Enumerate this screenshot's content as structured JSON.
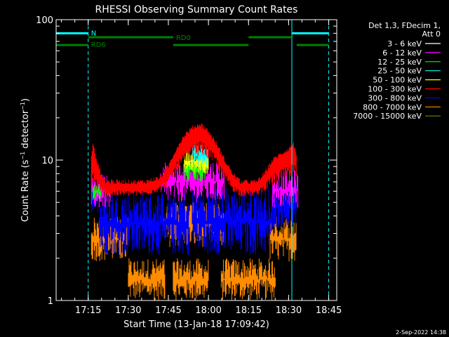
{
  "chart_data": {
    "type": "line",
    "title": "RHESSI Observing Summary Count Rates",
    "xlabel": "Start Time (13-Jan-18 17:09:42)",
    "ylabel": "Count Rate (s",
    "ylabel_exp1": "−1",
    "ylabel_mid": " detector",
    "ylabel_exp2": "−1",
    "ylabel_end": ")",
    "y_scale": "log",
    "ylim": [
      1,
      100
    ],
    "xlim_minutes": [
      17.05,
      18.8
    ],
    "x_tick_labels": [
      "17:15",
      "17:30",
      "17:45",
      "18:00",
      "18:15",
      "18:30",
      "18:45"
    ],
    "x_tick_values": [
      17.25,
      17.5,
      17.75,
      18.0,
      18.25,
      18.5,
      18.75
    ],
    "y_tick_labels": [
      "1",
      "10",
      "100"
    ],
    "y_tick_values": [
      1,
      10,
      100
    ],
    "legend_header": [
      "Det 1,3, FDecim 1,",
      "Att 0"
    ],
    "legend_placement": "right",
    "series": [
      {
        "name": "3 - 6 keV",
        "color": "#ffffff"
      },
      {
        "name": "6 - 12 keV",
        "color": "#ff00ff"
      },
      {
        "name": "12 - 25 keV",
        "color": "#00ff00"
      },
      {
        "name": "25 - 50 keV",
        "color": "#00ffff"
      },
      {
        "name": "50 - 100 keV",
        "color": "#ffff00"
      },
      {
        "name": "100 - 300 keV",
        "color": "#ff0000"
      },
      {
        "name": "300 - 800 keV",
        "color": "#0000ff"
      },
      {
        "name": "800 - 7000 keV",
        "color": "#ff8c00"
      },
      {
        "name": "7000 - 15000 keV",
        "color": "#808000"
      }
    ],
    "bands": [
      {
        "color": "#ff8c00",
        "segments": [
          [
            17.5,
            17.73,
            1.0,
            2.0
          ],
          [
            17.78,
            18.0,
            1.0,
            2.0
          ],
          [
            18.08,
            18.42,
            1.0,
            2.0
          ],
          [
            17.27,
            17.5,
            1.9,
            4.0
          ],
          [
            17.72,
            18.1,
            2.4,
            5.0
          ],
          [
            18.38,
            18.55,
            1.9,
            4.0
          ]
        ]
      },
      {
        "color": "#0000ff",
        "segments": [
          [
            17.32,
            17.88,
            2.1,
            6.0
          ],
          [
            17.9,
            18.4,
            2.1,
            6.5
          ],
          [
            17.27,
            17.32,
            4.0,
            7.5
          ],
          [
            18.4,
            18.56,
            3.3,
            7.0
          ]
        ]
      },
      {
        "color": "#ff00ff",
        "segments": [
          [
            17.27,
            17.4,
            4.5,
            8.0
          ],
          [
            17.7,
            18.1,
            5.0,
            10.0
          ],
          [
            18.4,
            18.56,
            4.5,
            8.5
          ]
        ]
      },
      {
        "color": "#00ff00",
        "segments": [
          [
            17.85,
            18.0,
            7.0,
            11.0
          ],
          [
            17.28,
            17.33,
            5.0,
            7.0
          ]
        ]
      },
      {
        "color": "#ffff00",
        "segments": [
          [
            17.85,
            18.0,
            8.0,
            12.0
          ]
        ]
      },
      {
        "color": "#00ffff",
        "segments": [
          [
            17.9,
            18.0,
            9.0,
            13.0
          ]
        ]
      }
    ],
    "red_envelope": {
      "color": "#ff0000",
      "x": [
        17.27,
        17.28,
        17.3,
        17.33,
        17.36,
        17.4,
        17.5,
        17.6,
        17.7,
        17.75,
        17.8,
        17.85,
        17.9,
        17.95,
        18.0,
        18.05,
        18.1,
        18.15,
        18.2,
        18.25,
        18.3,
        18.35,
        18.4,
        18.45,
        18.5,
        18.53,
        18.55
      ],
      "y": [
        11.0,
        13.0,
        10.0,
        8.0,
        7.0,
        7.0,
        7.0,
        7.0,
        7.5,
        9.0,
        12.0,
        15.0,
        17.0,
        18.0,
        16.0,
        13.0,
        10.0,
        8.0,
        7.0,
        7.0,
        7.0,
        8.0,
        10.0,
        11.0,
        12.0,
        13.0,
        11.0
      ],
      "y_lower": [
        6.0,
        6.0,
        6.0,
        5.5,
        5.5,
        5.5,
        5.5,
        5.5,
        6.0,
        6.5,
        8.0,
        9.0,
        10.0,
        11.0,
        10.0,
        9.0,
        7.0,
        6.0,
        5.5,
        5.5,
        5.5,
        6.0,
        6.5,
        7.0,
        7.0,
        7.5,
        7.0
      ]
    },
    "annotations": {
      "segments": [
        {
          "label": "N",
          "color": "#00ffff",
          "level": 80,
          "x": [
            [
              17.05,
              17.25
            ],
            [
              18.52,
              18.75
            ]
          ]
        },
        {
          "label": "RD0",
          "color": "#008000",
          "level": 75,
          "x": [
            [
              17.25,
              17.78
            ],
            [
              18.25,
              18.52
            ]
          ]
        },
        {
          "label": "RD6",
          "color": "#008000",
          "level": 66,
          "x": [
            [
              17.05,
              17.25
            ],
            [
              17.78,
              18.25
            ],
            [
              18.55,
              18.75
            ]
          ]
        }
      ],
      "vlines_solid": [
        17.05,
        18.52
      ],
      "vlines_dashed": [
        17.25,
        18.75
      ]
    }
  },
  "footer_date": "2-Sep-2022 14:38"
}
